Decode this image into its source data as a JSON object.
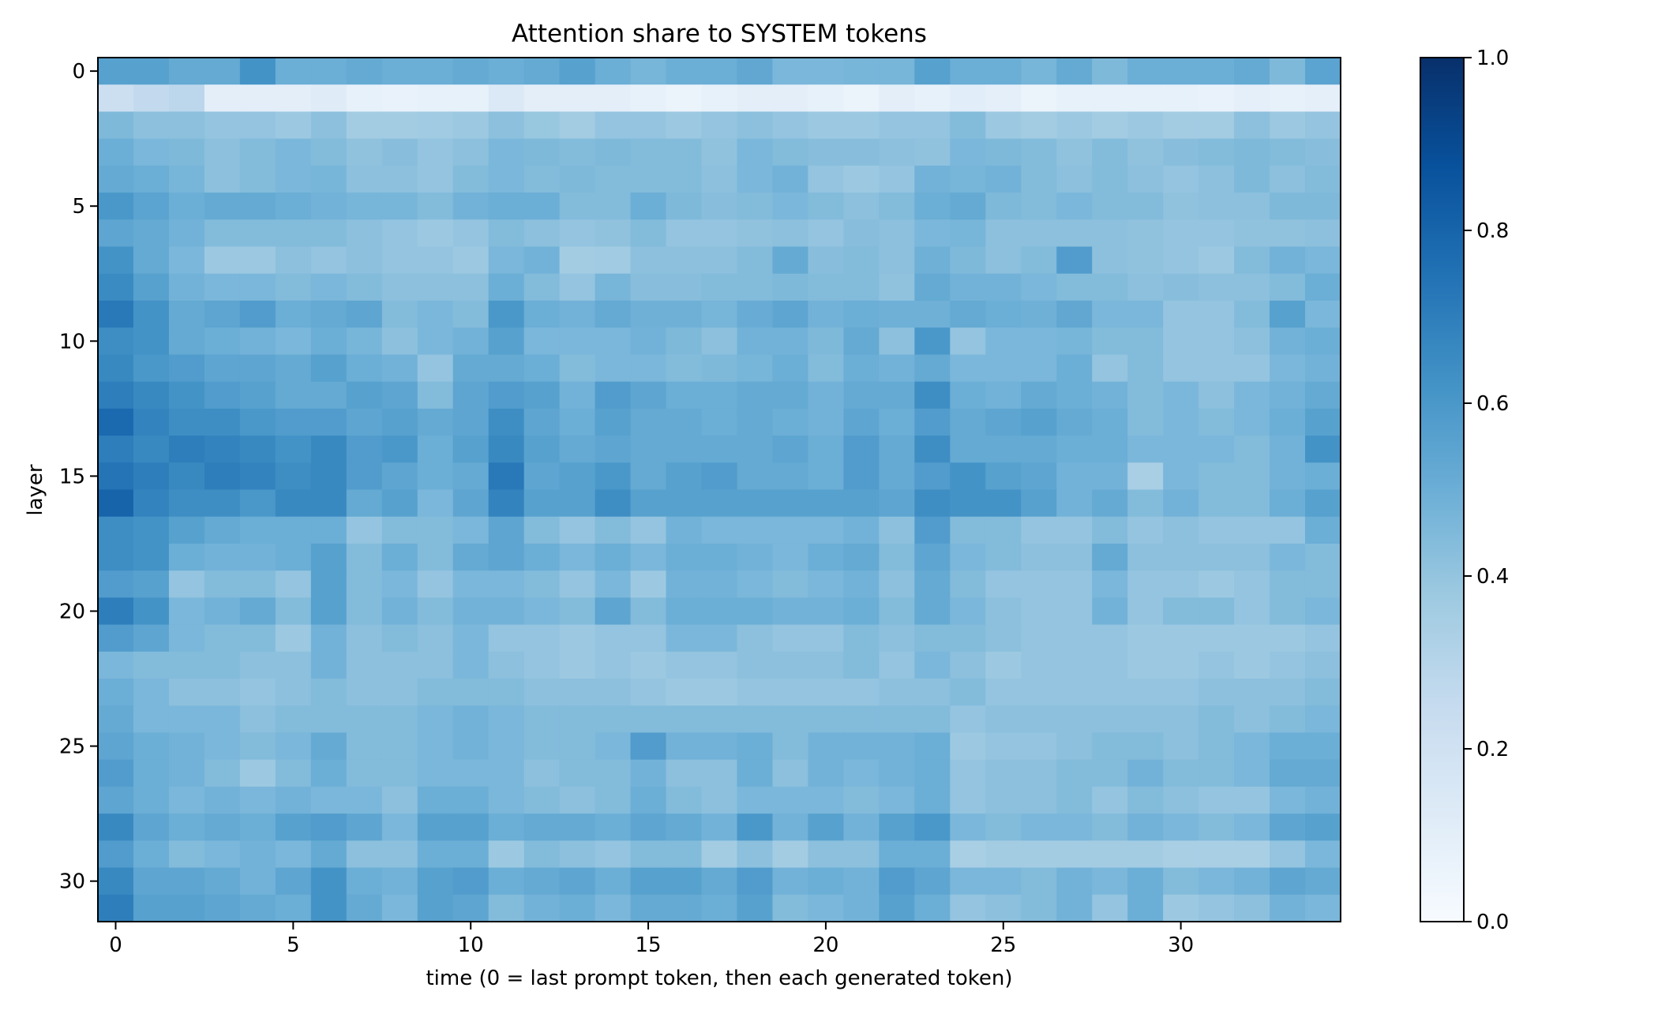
{
  "chart_data": {
    "type": "heatmap",
    "title": "Attention share to SYSTEM tokens",
    "xlabel": "time (0 = last prompt token, then each generated token)",
    "ylabel": "layer",
    "x_ticks": [
      0,
      5,
      10,
      15,
      20,
      25,
      30
    ],
    "y_ticks": [
      0,
      5,
      10,
      15,
      20,
      25,
      30
    ],
    "n_cols": 35,
    "n_rows": 32,
    "colormap": "Blues",
    "colormap_stops": [
      "#f7fbff",
      "#deebf7",
      "#c6dbef",
      "#9ecae1",
      "#6baed6",
      "#4292c6",
      "#2171b5",
      "#08519c",
      "#08306b"
    ],
    "colorbar": {
      "min": 0.0,
      "max": 1.0,
      "ticks": [
        "0.0",
        "0.2",
        "0.4",
        "0.6",
        "0.8",
        "1.0"
      ]
    },
    "values": [
      [
        0.56,
        0.56,
        0.52,
        0.52,
        0.62,
        0.5,
        0.5,
        0.52,
        0.5,
        0.5,
        0.52,
        0.5,
        0.52,
        0.56,
        0.5,
        0.47,
        0.5,
        0.5,
        0.53,
        0.46,
        0.46,
        0.47,
        0.47,
        0.56,
        0.5,
        0.5,
        0.47,
        0.52,
        0.45,
        0.5,
        0.5,
        0.5,
        0.52,
        0.45,
        0.55
      ],
      [
        0.22,
        0.26,
        0.28,
        0.1,
        0.1,
        0.1,
        0.12,
        0.08,
        0.07,
        0.08,
        0.08,
        0.14,
        0.1,
        0.1,
        0.1,
        0.08,
        0.06,
        0.08,
        0.1,
        0.1,
        0.08,
        0.06,
        0.1,
        0.08,
        0.11,
        0.09,
        0.06,
        0.08,
        0.08,
        0.08,
        0.08,
        0.07,
        0.09,
        0.08,
        0.09
      ],
      [
        0.45,
        0.42,
        0.42,
        0.4,
        0.4,
        0.38,
        0.42,
        0.36,
        0.36,
        0.37,
        0.38,
        0.42,
        0.39,
        0.36,
        0.4,
        0.4,
        0.38,
        0.4,
        0.42,
        0.4,
        0.38,
        0.38,
        0.4,
        0.4,
        0.44,
        0.38,
        0.36,
        0.38,
        0.36,
        0.38,
        0.36,
        0.36,
        0.42,
        0.38,
        0.4
      ],
      [
        0.5,
        0.46,
        0.45,
        0.42,
        0.44,
        0.46,
        0.44,
        0.41,
        0.43,
        0.4,
        0.42,
        0.46,
        0.45,
        0.44,
        0.45,
        0.44,
        0.44,
        0.41,
        0.46,
        0.44,
        0.43,
        0.43,
        0.42,
        0.41,
        0.46,
        0.45,
        0.44,
        0.41,
        0.44,
        0.41,
        0.43,
        0.44,
        0.45,
        0.44,
        0.43
      ],
      [
        0.52,
        0.5,
        0.47,
        0.42,
        0.44,
        0.46,
        0.47,
        0.42,
        0.42,
        0.4,
        0.44,
        0.46,
        0.44,
        0.45,
        0.44,
        0.44,
        0.44,
        0.42,
        0.46,
        0.48,
        0.4,
        0.38,
        0.4,
        0.48,
        0.47,
        0.48,
        0.44,
        0.42,
        0.44,
        0.42,
        0.4,
        0.42,
        0.45,
        0.42,
        0.44
      ],
      [
        0.6,
        0.55,
        0.5,
        0.52,
        0.52,
        0.5,
        0.48,
        0.47,
        0.47,
        0.44,
        0.48,
        0.5,
        0.5,
        0.44,
        0.44,
        0.5,
        0.45,
        0.43,
        0.44,
        0.46,
        0.44,
        0.42,
        0.44,
        0.5,
        0.52,
        0.45,
        0.44,
        0.46,
        0.44,
        0.44,
        0.41,
        0.42,
        0.42,
        0.45,
        0.45
      ],
      [
        0.54,
        0.52,
        0.48,
        0.44,
        0.44,
        0.44,
        0.44,
        0.42,
        0.4,
        0.38,
        0.4,
        0.44,
        0.42,
        0.4,
        0.41,
        0.44,
        0.4,
        0.4,
        0.41,
        0.42,
        0.4,
        0.43,
        0.42,
        0.46,
        0.47,
        0.42,
        0.42,
        0.42,
        0.42,
        0.41,
        0.4,
        0.4,
        0.41,
        0.41,
        0.42
      ],
      [
        0.62,
        0.52,
        0.46,
        0.38,
        0.38,
        0.42,
        0.4,
        0.42,
        0.4,
        0.4,
        0.38,
        0.46,
        0.48,
        0.36,
        0.37,
        0.42,
        0.42,
        0.42,
        0.44,
        0.52,
        0.43,
        0.44,
        0.42,
        0.49,
        0.45,
        0.42,
        0.44,
        0.58,
        0.42,
        0.41,
        0.4,
        0.38,
        0.44,
        0.48,
        0.46
      ],
      [
        0.65,
        0.56,
        0.48,
        0.46,
        0.46,
        0.44,
        0.46,
        0.44,
        0.42,
        0.42,
        0.42,
        0.5,
        0.44,
        0.4,
        0.47,
        0.43,
        0.43,
        0.44,
        0.44,
        0.45,
        0.44,
        0.44,
        0.41,
        0.52,
        0.48,
        0.48,
        0.46,
        0.44,
        0.44,
        0.42,
        0.43,
        0.42,
        0.42,
        0.44,
        0.5
      ],
      [
        0.72,
        0.62,
        0.52,
        0.54,
        0.58,
        0.5,
        0.52,
        0.54,
        0.44,
        0.46,
        0.44,
        0.6,
        0.5,
        0.48,
        0.52,
        0.49,
        0.49,
        0.47,
        0.51,
        0.54,
        0.48,
        0.5,
        0.49,
        0.49,
        0.52,
        0.5,
        0.49,
        0.53,
        0.46,
        0.46,
        0.4,
        0.4,
        0.44,
        0.56,
        0.46
      ],
      [
        0.64,
        0.62,
        0.52,
        0.5,
        0.48,
        0.46,
        0.5,
        0.47,
        0.42,
        0.46,
        0.48,
        0.56,
        0.46,
        0.46,
        0.46,
        0.48,
        0.45,
        0.42,
        0.48,
        0.48,
        0.45,
        0.52,
        0.42,
        0.6,
        0.4,
        0.46,
        0.46,
        0.47,
        0.44,
        0.44,
        0.4,
        0.4,
        0.42,
        0.48,
        0.5
      ],
      [
        0.66,
        0.6,
        0.58,
        0.54,
        0.54,
        0.52,
        0.56,
        0.5,
        0.48,
        0.4,
        0.52,
        0.52,
        0.5,
        0.44,
        0.46,
        0.46,
        0.44,
        0.45,
        0.47,
        0.5,
        0.44,
        0.5,
        0.48,
        0.52,
        0.46,
        0.46,
        0.46,
        0.5,
        0.4,
        0.44,
        0.4,
        0.4,
        0.4,
        0.46,
        0.48
      ],
      [
        0.7,
        0.66,
        0.62,
        0.58,
        0.56,
        0.52,
        0.52,
        0.56,
        0.54,
        0.44,
        0.54,
        0.58,
        0.56,
        0.48,
        0.58,
        0.54,
        0.5,
        0.5,
        0.52,
        0.52,
        0.48,
        0.52,
        0.52,
        0.64,
        0.5,
        0.48,
        0.52,
        0.5,
        0.48,
        0.44,
        0.46,
        0.42,
        0.46,
        0.48,
        0.52
      ],
      [
        0.78,
        0.68,
        0.64,
        0.64,
        0.6,
        0.58,
        0.58,
        0.54,
        0.56,
        0.52,
        0.54,
        0.64,
        0.54,
        0.5,
        0.56,
        0.52,
        0.52,
        0.5,
        0.52,
        0.5,
        0.48,
        0.54,
        0.5,
        0.58,
        0.52,
        0.54,
        0.56,
        0.52,
        0.5,
        0.44,
        0.46,
        0.44,
        0.46,
        0.5,
        0.56
      ],
      [
        0.7,
        0.66,
        0.7,
        0.68,
        0.66,
        0.62,
        0.66,
        0.58,
        0.6,
        0.5,
        0.56,
        0.66,
        0.56,
        0.52,
        0.54,
        0.52,
        0.52,
        0.52,
        0.52,
        0.54,
        0.5,
        0.58,
        0.52,
        0.64,
        0.52,
        0.52,
        0.52,
        0.5,
        0.5,
        0.46,
        0.46,
        0.46,
        0.44,
        0.48,
        0.62
      ],
      [
        0.74,
        0.7,
        0.66,
        0.7,
        0.68,
        0.64,
        0.66,
        0.58,
        0.54,
        0.5,
        0.52,
        0.72,
        0.54,
        0.56,
        0.6,
        0.52,
        0.56,
        0.58,
        0.52,
        0.52,
        0.5,
        0.58,
        0.52,
        0.58,
        0.62,
        0.56,
        0.54,
        0.48,
        0.48,
        0.34,
        0.46,
        0.44,
        0.44,
        0.48,
        0.5
      ],
      [
        0.8,
        0.68,
        0.64,
        0.64,
        0.6,
        0.66,
        0.66,
        0.52,
        0.56,
        0.46,
        0.54,
        0.68,
        0.56,
        0.56,
        0.64,
        0.56,
        0.56,
        0.56,
        0.56,
        0.56,
        0.56,
        0.56,
        0.54,
        0.64,
        0.62,
        0.62,
        0.56,
        0.48,
        0.52,
        0.44,
        0.48,
        0.44,
        0.44,
        0.5,
        0.56
      ],
      [
        0.64,
        0.62,
        0.56,
        0.52,
        0.5,
        0.5,
        0.5,
        0.4,
        0.44,
        0.44,
        0.46,
        0.54,
        0.44,
        0.4,
        0.44,
        0.4,
        0.48,
        0.46,
        0.46,
        0.46,
        0.46,
        0.48,
        0.42,
        0.58,
        0.44,
        0.44,
        0.4,
        0.4,
        0.44,
        0.4,
        0.42,
        0.4,
        0.4,
        0.4,
        0.5
      ],
      [
        0.64,
        0.62,
        0.5,
        0.48,
        0.48,
        0.5,
        0.56,
        0.44,
        0.5,
        0.44,
        0.52,
        0.54,
        0.5,
        0.46,
        0.5,
        0.46,
        0.5,
        0.5,
        0.48,
        0.46,
        0.5,
        0.52,
        0.44,
        0.54,
        0.46,
        0.44,
        0.42,
        0.42,
        0.52,
        0.42,
        0.42,
        0.42,
        0.42,
        0.46,
        0.44
      ],
      [
        0.58,
        0.56,
        0.4,
        0.44,
        0.44,
        0.4,
        0.56,
        0.44,
        0.46,
        0.4,
        0.46,
        0.46,
        0.44,
        0.4,
        0.46,
        0.38,
        0.48,
        0.48,
        0.46,
        0.44,
        0.46,
        0.48,
        0.42,
        0.52,
        0.44,
        0.4,
        0.4,
        0.4,
        0.46,
        0.4,
        0.4,
        0.38,
        0.4,
        0.44,
        0.44
      ],
      [
        0.7,
        0.62,
        0.46,
        0.48,
        0.52,
        0.44,
        0.56,
        0.44,
        0.48,
        0.44,
        0.48,
        0.48,
        0.46,
        0.44,
        0.54,
        0.44,
        0.5,
        0.5,
        0.5,
        0.48,
        0.48,
        0.5,
        0.44,
        0.52,
        0.46,
        0.42,
        0.4,
        0.4,
        0.48,
        0.4,
        0.44,
        0.44,
        0.4,
        0.44,
        0.46
      ],
      [
        0.58,
        0.54,
        0.46,
        0.44,
        0.44,
        0.38,
        0.48,
        0.42,
        0.44,
        0.42,
        0.46,
        0.4,
        0.4,
        0.38,
        0.4,
        0.4,
        0.46,
        0.46,
        0.42,
        0.4,
        0.4,
        0.44,
        0.42,
        0.44,
        0.44,
        0.42,
        0.4,
        0.4,
        0.4,
        0.38,
        0.38,
        0.38,
        0.38,
        0.38,
        0.4
      ],
      [
        0.46,
        0.44,
        0.44,
        0.44,
        0.42,
        0.42,
        0.48,
        0.42,
        0.42,
        0.42,
        0.46,
        0.42,
        0.4,
        0.38,
        0.4,
        0.38,
        0.4,
        0.4,
        0.42,
        0.42,
        0.42,
        0.44,
        0.4,
        0.46,
        0.42,
        0.38,
        0.4,
        0.4,
        0.4,
        0.38,
        0.38,
        0.4,
        0.38,
        0.4,
        0.42
      ],
      [
        0.5,
        0.46,
        0.42,
        0.42,
        0.4,
        0.42,
        0.44,
        0.42,
        0.42,
        0.44,
        0.44,
        0.44,
        0.42,
        0.42,
        0.42,
        0.4,
        0.38,
        0.38,
        0.4,
        0.4,
        0.4,
        0.4,
        0.42,
        0.42,
        0.44,
        0.4,
        0.4,
        0.4,
        0.4,
        0.4,
        0.4,
        0.42,
        0.42,
        0.42,
        0.44
      ],
      [
        0.52,
        0.46,
        0.46,
        0.46,
        0.42,
        0.44,
        0.44,
        0.44,
        0.44,
        0.46,
        0.48,
        0.46,
        0.44,
        0.44,
        0.44,
        0.44,
        0.44,
        0.44,
        0.44,
        0.44,
        0.44,
        0.44,
        0.44,
        0.44,
        0.4,
        0.42,
        0.42,
        0.42,
        0.42,
        0.42,
        0.42,
        0.44,
        0.42,
        0.44,
        0.46
      ],
      [
        0.54,
        0.5,
        0.48,
        0.46,
        0.44,
        0.46,
        0.52,
        0.44,
        0.44,
        0.46,
        0.48,
        0.46,
        0.44,
        0.44,
        0.46,
        0.58,
        0.48,
        0.48,
        0.5,
        0.44,
        0.48,
        0.48,
        0.48,
        0.5,
        0.38,
        0.4,
        0.4,
        0.42,
        0.44,
        0.44,
        0.42,
        0.44,
        0.46,
        0.5,
        0.5
      ],
      [
        0.58,
        0.5,
        0.48,
        0.44,
        0.38,
        0.44,
        0.5,
        0.44,
        0.44,
        0.46,
        0.46,
        0.46,
        0.42,
        0.44,
        0.44,
        0.48,
        0.42,
        0.42,
        0.5,
        0.42,
        0.48,
        0.46,
        0.48,
        0.5,
        0.4,
        0.42,
        0.42,
        0.44,
        0.44,
        0.48,
        0.44,
        0.44,
        0.46,
        0.52,
        0.52
      ],
      [
        0.54,
        0.5,
        0.46,
        0.48,
        0.46,
        0.48,
        0.46,
        0.46,
        0.42,
        0.5,
        0.5,
        0.46,
        0.44,
        0.42,
        0.44,
        0.5,
        0.44,
        0.42,
        0.46,
        0.46,
        0.46,
        0.44,
        0.46,
        0.5,
        0.4,
        0.42,
        0.42,
        0.44,
        0.4,
        0.44,
        0.42,
        0.4,
        0.4,
        0.46,
        0.48
      ],
      [
        0.66,
        0.54,
        0.5,
        0.52,
        0.5,
        0.56,
        0.58,
        0.54,
        0.46,
        0.56,
        0.56,
        0.5,
        0.52,
        0.52,
        0.5,
        0.54,
        0.52,
        0.48,
        0.6,
        0.48,
        0.56,
        0.48,
        0.56,
        0.6,
        0.46,
        0.44,
        0.46,
        0.46,
        0.44,
        0.48,
        0.46,
        0.44,
        0.46,
        0.54,
        0.56
      ],
      [
        0.58,
        0.5,
        0.44,
        0.46,
        0.48,
        0.46,
        0.52,
        0.42,
        0.42,
        0.5,
        0.5,
        0.38,
        0.44,
        0.42,
        0.4,
        0.44,
        0.44,
        0.36,
        0.42,
        0.36,
        0.42,
        0.42,
        0.5,
        0.5,
        0.34,
        0.36,
        0.36,
        0.36,
        0.36,
        0.36,
        0.34,
        0.34,
        0.34,
        0.4,
        0.46
      ],
      [
        0.66,
        0.54,
        0.54,
        0.52,
        0.48,
        0.54,
        0.62,
        0.5,
        0.48,
        0.56,
        0.58,
        0.5,
        0.52,
        0.54,
        0.5,
        0.56,
        0.56,
        0.52,
        0.58,
        0.48,
        0.5,
        0.48,
        0.58,
        0.54,
        0.46,
        0.46,
        0.44,
        0.48,
        0.46,
        0.5,
        0.44,
        0.46,
        0.48,
        0.54,
        0.52
      ],
      [
        0.7,
        0.56,
        0.56,
        0.54,
        0.52,
        0.5,
        0.62,
        0.52,
        0.46,
        0.56,
        0.54,
        0.44,
        0.48,
        0.5,
        0.46,
        0.52,
        0.52,
        0.5,
        0.56,
        0.44,
        0.46,
        0.48,
        0.56,
        0.5,
        0.4,
        0.42,
        0.44,
        0.48,
        0.4,
        0.5,
        0.38,
        0.4,
        0.42,
        0.48,
        0.46
      ]
    ]
  }
}
